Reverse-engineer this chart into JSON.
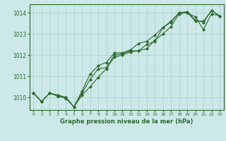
{
  "x": [
    0,
    1,
    2,
    3,
    4,
    5,
    6,
    7,
    8,
    9,
    10,
    11,
    12,
    13,
    14,
    15,
    16,
    17,
    18,
    19,
    20,
    21,
    22,
    23
  ],
  "s1": [
    1010.2,
    1009.8,
    1010.2,
    1010.05,
    1009.95,
    1009.55,
    1010.3,
    1011.1,
    1011.5,
    1011.65,
    1012.1,
    1012.1,
    1012.25,
    1012.55,
    1012.65,
    1012.95,
    1013.3,
    1013.6,
    1014.0,
    1014.05,
    1013.65,
    1013.55,
    1014.1,
    1013.85
  ],
  "s2": [
    1010.2,
    1009.8,
    1010.2,
    1010.1,
    1010.0,
    1009.55,
    1010.1,
    1010.5,
    1010.95,
    1011.35,
    1011.9,
    1012.0,
    1012.15,
    1012.2,
    1012.3,
    1012.7,
    1013.0,
    1013.35,
    1013.95,
    1014.0,
    1013.8,
    1013.2,
    1013.95,
    1013.85
  ],
  "s3": [
    1010.2,
    1009.8,
    1010.2,
    1010.1,
    1010.0,
    1009.55,
    1010.2,
    1010.85,
    1011.35,
    1011.4,
    1012.0,
    1012.05,
    1012.2,
    1012.2,
    1012.5,
    1012.65,
    1013.3,
    1013.55,
    1014.0,
    1014.0,
    1013.6,
    1013.6,
    1014.1,
    1013.85
  ],
  "ylim": [
    1009.4,
    1014.4
  ],
  "yticks": [
    1010,
    1011,
    1012,
    1013,
    1014
  ],
  "xlim": [
    -0.5,
    23.5
  ],
  "xticks": [
    0,
    1,
    2,
    3,
    4,
    5,
    6,
    7,
    8,
    9,
    10,
    11,
    12,
    13,
    14,
    15,
    16,
    17,
    18,
    19,
    20,
    21,
    22,
    23
  ],
  "xlabel": "Graphe pression niveau de la mer (hPa)",
  "line_color": "#2d6a2d",
  "bg_color": "#cce8e8",
  "grid_color": "#aacccc",
  "marker": "D",
  "marker_size": 2.0,
  "linewidth": 0.8
}
